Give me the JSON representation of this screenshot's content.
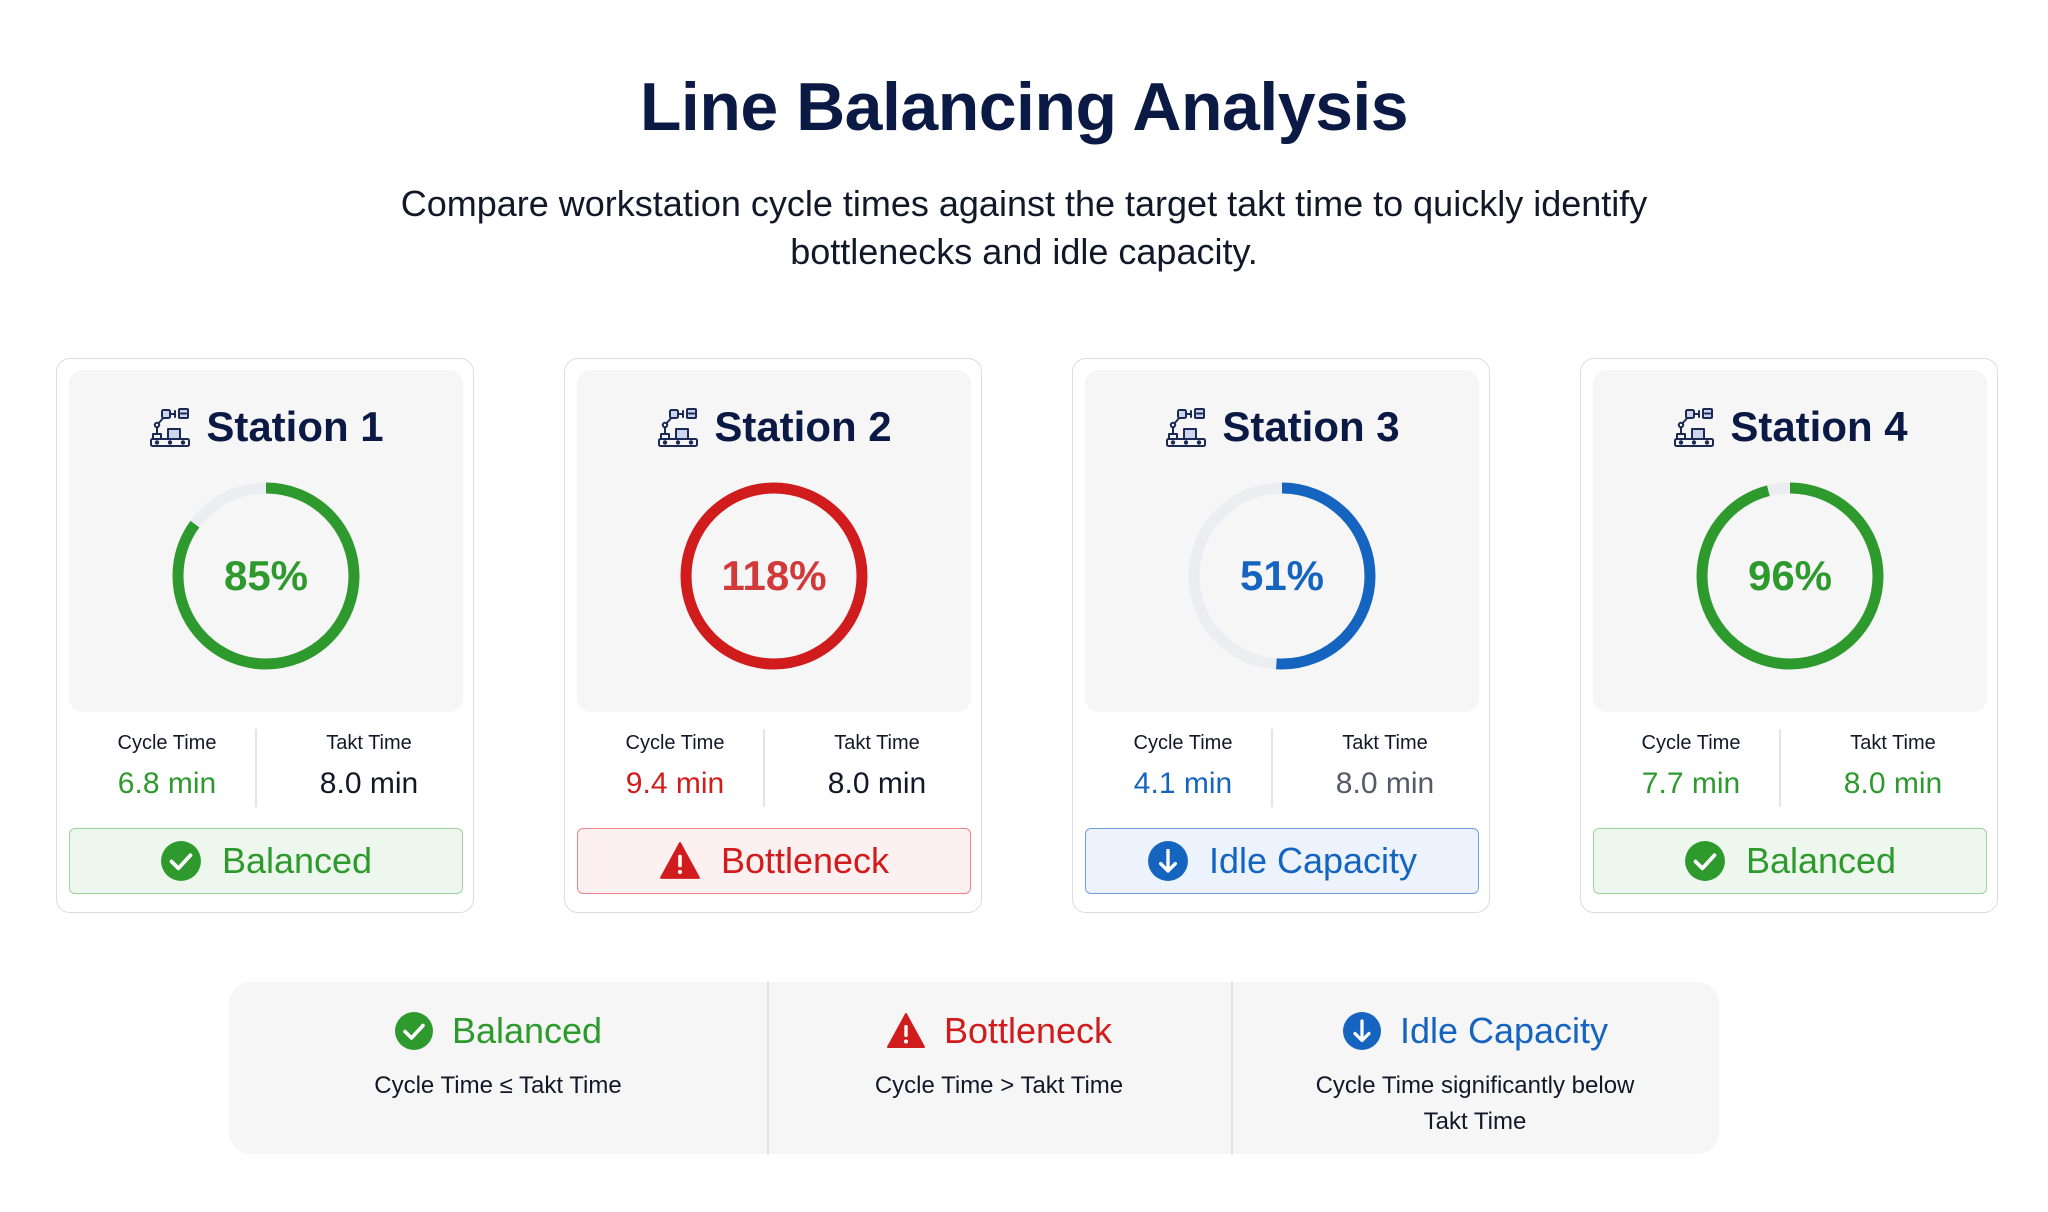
{
  "title": "Line Balancing Analysis",
  "subtitle": "Compare workstation cycle times against the target takt time to quickly identify bottlenecks and idle capacity.",
  "colors": {
    "balanced": "#2e9a2e",
    "bottleneck": "#d01c1c",
    "idle": "#1565c0",
    "track": "#ecedf1"
  },
  "metric_labels": {
    "cycle": "Cycle Time",
    "takt": "Takt Time"
  },
  "stations": [
    {
      "name": "Station 1",
      "utilization": 85,
      "pct_label": "85%",
      "cycle": "6.8 min",
      "takt": "8.0 min",
      "status": "balanced",
      "status_label": "Balanced",
      "icon": "factory-robot-icon"
    },
    {
      "name": "Station 2",
      "utilization": 118,
      "pct_label": "118%",
      "cycle": "9.4 min",
      "takt": "8.0 min",
      "status": "bottleneck",
      "status_label": "Bottleneck",
      "icon": "factory-robot-icon"
    },
    {
      "name": "Station 3",
      "utilization": 51,
      "pct_label": "51%",
      "cycle": "4.1 min",
      "takt": "8.0 min",
      "status": "idle",
      "status_label": "Idle Capacity",
      "icon": "factory-robot-icon"
    },
    {
      "name": "Station 4",
      "utilization": 96,
      "pct_label": "96%",
      "cycle": "7.7 min",
      "takt": "8.0 min",
      "status": "balanced",
      "status_label": "Balanced",
      "icon": "factory-robot-icon"
    }
  ],
  "legend": [
    {
      "status": "balanced",
      "label": "Balanced",
      "desc": "Cycle Time ≤ Takt Time",
      "icon": "check-circle-icon"
    },
    {
      "status": "bottleneck",
      "label": "Bottleneck",
      "desc": "Cycle Time > Takt Time",
      "icon": "warning-triangle-icon"
    },
    {
      "status": "idle",
      "label": "Idle Capacity",
      "desc": "Cycle Time significantly below Takt Time",
      "icon": "arrow-down-circle-icon"
    }
  ]
}
